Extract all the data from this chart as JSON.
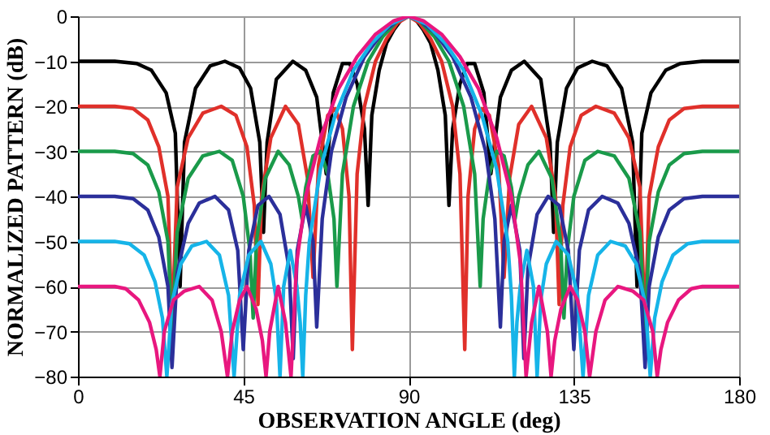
{
  "chart_data": {
    "type": "line",
    "xlabel": "OBSERVATION ANGLE (deg)",
    "ylabel": "NORMALIZED PATTERN (dB)",
    "xlim": [
      0,
      180
    ],
    "xticks": [
      0,
      45,
      90,
      135,
      180
    ],
    "ylim": [
      -80,
      0
    ],
    "yticks": [
      0,
      -10,
      -20,
      -30,
      -40,
      -50,
      -60,
      -70,
      -80
    ],
    "grid": true,
    "legend": false,
    "series": [
      {
        "color": "#000000",
        "x": [
          0,
          10,
          16,
          20,
          24,
          26.5,
          27.8,
          29,
          32,
          36,
          40,
          44,
          47,
          49.5,
          50.5,
          51.5,
          54,
          58.5,
          62,
          65,
          67.6,
          69.5,
          72,
          74,
          76,
          78,
          79,
          80,
          82,
          84,
          86,
          88,
          90,
          92,
          94,
          96,
          98,
          100,
          101,
          102,
          104,
          106,
          108,
          110.5,
          112.4,
          115,
          118,
          121.5,
          126,
          128.5,
          129.5,
          130.5,
          133,
          136,
          140,
          144,
          148,
          151,
          152.2,
          153.5,
          156,
          160,
          164,
          170,
          180
        ],
        "values": [
          -10,
          -10,
          -10.5,
          -12,
          -17,
          -26,
          -60,
          -28,
          -16,
          -11,
          -10,
          -11.5,
          -16,
          -28,
          -48,
          -28,
          -14,
          -10,
          -12,
          -18,
          -35,
          -17,
          -10.5,
          -10.5,
          -15,
          -25,
          -42,
          -22,
          -12,
          -6,
          -3,
          -0.8,
          0,
          -0.8,
          -3,
          -6,
          -12,
          -22,
          -42,
          -25,
          -15,
          -10.5,
          -10.5,
          -17,
          -35,
          -18,
          -12,
          -10,
          -14,
          -28,
          -48,
          -28,
          -16,
          -11.5,
          -10,
          -11,
          -16,
          -28,
          -60,
          -26,
          -17,
          -12,
          -10.5,
          -10,
          -10
        ]
      },
      {
        "color": "#e0302a",
        "x": [
          0,
          10,
          15,
          19,
          22,
          24.5,
          25.6,
          27,
          30,
          34,
          39,
          43,
          46,
          48,
          49,
          50,
          52.5,
          56.5,
          60,
          62.5,
          64,
          65.5,
          68,
          70,
          72,
          73.8,
          74.7,
          76,
          78,
          81,
          84,
          87,
          90,
          93,
          96,
          99,
          102,
          104,
          105.3,
          106.2,
          108,
          110,
          112,
          114.5,
          116,
          117.5,
          120,
          123.5,
          127.5,
          130,
          131,
          132,
          134,
          137,
          141,
          146,
          150,
          153,
          154.4,
          155.5,
          158,
          161,
          165,
          170,
          180
        ],
        "values": [
          -20,
          -20,
          -20.5,
          -23,
          -29,
          -40,
          -69,
          -38,
          -27,
          -21.5,
          -20,
          -22,
          -29,
          -42,
          -64,
          -40,
          -27,
          -20,
          -24,
          -36,
          -58,
          -33,
          -22,
          -20.5,
          -25,
          -40,
          -74,
          -35,
          -20,
          -10,
          -5,
          -1.5,
          0,
          -1.5,
          -5,
          -10,
          -20,
          -35,
          -74,
          -40,
          -25,
          -20.5,
          -22,
          -33,
          -58,
          -36,
          -24,
          -20,
          -27,
          -40,
          -64,
          -42,
          -29,
          -22,
          -20,
          -21.5,
          -27,
          -38,
          -69,
          -40,
          -29,
          -23,
          -20.5,
          -20,
          -20
        ]
      },
      {
        "color": "#1a9a4a",
        "x": [
          0,
          10,
          15,
          19,
          22,
          24.5,
          25.6,
          27,
          30,
          34,
          38.5,
          42,
          45,
          46.8,
          47.7,
          48.6,
          51,
          54.5,
          57.5,
          60,
          61,
          62,
          64,
          66,
          68,
          69.7,
          70.5,
          72,
          75,
          79,
          83,
          87,
          90,
          93,
          97,
          101,
          105,
          108,
          109.5,
          110.3,
          112,
          114,
          116,
          118,
          119,
          120,
          122.5,
          125.5,
          129,
          131.4,
          132.3,
          133.2,
          135,
          138,
          141.5,
          146,
          150,
          153,
          154.4,
          155.5,
          158,
          161,
          165,
          170,
          180
        ],
        "values": [
          -30,
          -30,
          -30.5,
          -33,
          -39,
          -50,
          -70,
          -48,
          -36,
          -31,
          -30,
          -32,
          -40,
          -52,
          -67,
          -50,
          -36,
          -30,
          -33,
          -40,
          -45,
          -38,
          -31,
          -30,
          -35,
          -45,
          -60,
          -35,
          -20,
          -10,
          -4.5,
          -1,
          0,
          -1,
          -4.5,
          -10,
          -20,
          -35,
          -60,
          -45,
          -35,
          -30,
          -31,
          -38,
          -45,
          -40,
          -33,
          -30,
          -36,
          -50,
          -67,
          -52,
          -40,
          -32,
          -30,
          -31,
          -36,
          -48,
          -70,
          -50,
          -39,
          -33,
          -30.5,
          -30,
          -30
        ]
      },
      {
        "color": "#2b2f9a",
        "x": [
          0,
          10,
          15,
          19,
          22,
          24.5,
          25.6,
          27,
          30,
          33,
          37.3,
          41,
          43.5,
          45,
          46.5,
          49,
          52,
          55,
          57.5,
          58.6,
          59.7,
          62,
          64,
          65,
          66.5,
          69,
          73,
          78,
          83,
          87,
          90,
          93,
          97,
          102,
          107,
          111,
          113.5,
          115,
          116,
          118,
          120.3,
          121.4,
          122.5,
          125,
          128,
          131,
          133.5,
          135,
          136.5,
          139,
          142.7,
          147,
          150,
          153,
          154.4,
          155.5,
          158,
          161,
          165,
          170,
          180
        ],
        "values": [
          -40,
          -40,
          -40.5,
          -43,
          -49,
          -60,
          -78,
          -57,
          -46,
          -41.5,
          -40,
          -43,
          -52,
          -74,
          -52,
          -42,
          -40,
          -44,
          -56,
          -76,
          -52,
          -42,
          -50,
          -69,
          -45,
          -30,
          -18,
          -9,
          -3.5,
          -1,
          0,
          -1,
          -3.5,
          -9,
          -18,
          -30,
          -45,
          -69,
          -50,
          -42,
          -52,
          -76,
          -56,
          -44,
          -40,
          -42,
          -52,
          -74,
          -52,
          -43,
          -40,
          -41.5,
          -46,
          -57,
          -78,
          -60,
          -49,
          -43,
          -40.5,
          -40,
          -40
        ]
      },
      {
        "color": "#16b4e8",
        "x": [
          0,
          10,
          14,
          18,
          21,
          23,
          24.2,
          25.5,
          28,
          31,
          35,
          38.5,
          41,
          42.5,
          44,
          46.5,
          49.8,
          52.5,
          54,
          55,
          56,
          57.8,
          59.6,
          60.5,
          61.2,
          62,
          63,
          66,
          70,
          75,
          80,
          85,
          90,
          95,
          100,
          105,
          110,
          114,
          117,
          118,
          118.8,
          119.5,
          120.4,
          122.2,
          124,
          125,
          126,
          127.5,
          130.2,
          133.5,
          136,
          137.5,
          139,
          141.5,
          145,
          149,
          152,
          154.5,
          155.8,
          157,
          159,
          162,
          166,
          170,
          180
        ],
        "values": [
          -50,
          -50,
          -50.5,
          -53,
          -59,
          -67,
          -80,
          -64,
          -55,
          -51,
          -50,
          -53,
          -62,
          -80,
          -62,
          -53,
          -50,
          -55,
          -63,
          -80,
          -60,
          -52,
          -60,
          -68,
          -80,
          -62,
          -50,
          -34,
          -22,
          -12,
          -6,
          -1.8,
          0,
          -1.8,
          -6,
          -12,
          -22,
          -34,
          -50,
          -62,
          -80,
          -68,
          -60,
          -52,
          -60,
          -80,
          -63,
          -55,
          -50,
          -53,
          -62,
          -80,
          -62,
          -53,
          -50,
          -51,
          -55,
          -64,
          -80,
          -67,
          -59,
          -53,
          -50.5,
          -50,
          -50
        ]
      },
      {
        "color": "#e8177f",
        "x": [
          0,
          10,
          13,
          16.5,
          19.5,
          21.3,
          22.3,
          23.5,
          26,
          29,
          33,
          36.5,
          39,
          40.7,
          42,
          44,
          46,
          48.5,
          50.2,
          51.2,
          52.2,
          54.5,
          56.5,
          58,
          59.5,
          62,
          66,
          71,
          76,
          81,
          86,
          90,
          94,
          99,
          104,
          109,
          114,
          118,
          120.5,
          122,
          123.5,
          125.5,
          127.8,
          128.8,
          129.8,
          131.5,
          134,
          136,
          138,
          139.3,
          141,
          143.5,
          147,
          151,
          154,
          156.5,
          157.7,
          158.7,
          160.5,
          163.5,
          167,
          170,
          180
        ],
        "values": [
          -60,
          -60,
          -60.5,
          -63,
          -68,
          -74,
          -80,
          -70,
          -63,
          -61,
          -60,
          -63,
          -70,
          -80,
          -70,
          -63,
          -60,
          -65,
          -72,
          -80,
          -70,
          -60,
          -68,
          -80,
          -55,
          -40,
          -27,
          -16,
          -9,
          -4,
          -1,
          0,
          -1,
          -4,
          -9,
          -16,
          -27,
          -40,
          -55,
          -80,
          -68,
          -60,
          -70,
          -80,
          -72,
          -65,
          -60,
          -63,
          -70,
          -80,
          -70,
          -63,
          -60,
          -61,
          -63,
          -70,
          -80,
          -74,
          -68,
          -63,
          -60.5,
          -60,
          -60
        ]
      }
    ]
  }
}
